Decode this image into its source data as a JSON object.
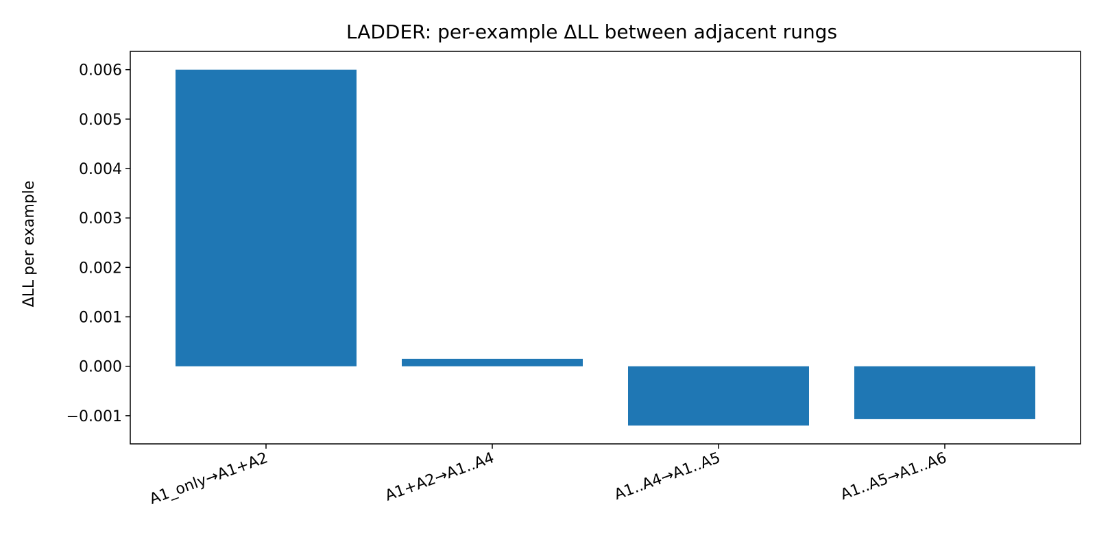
{
  "chart_data": {
    "type": "bar",
    "title": "LADDER: per-example ΔLL between adjacent rungs",
    "xlabel": "",
    "ylabel": "ΔLL per example",
    "categories": [
      "A1_only→A1+A2",
      "A1+A2→A1..A4",
      "A1..A4→A1..A5",
      "A1..A5→A1..A6"
    ],
    "values": [
      0.006,
      0.00015,
      -0.0012,
      -0.00107
    ],
    "ylim": [
      -0.00157,
      0.00637
    ],
    "yticks": [
      -0.001,
      0.0,
      0.001,
      0.002,
      0.003,
      0.004,
      0.005,
      0.006
    ],
    "ytick_labels": [
      "−0.001",
      "0.000",
      "0.001",
      "0.002",
      "0.003",
      "0.004",
      "0.005",
      "0.006"
    ],
    "grid": false,
    "bar_color": "#1f77b4"
  }
}
